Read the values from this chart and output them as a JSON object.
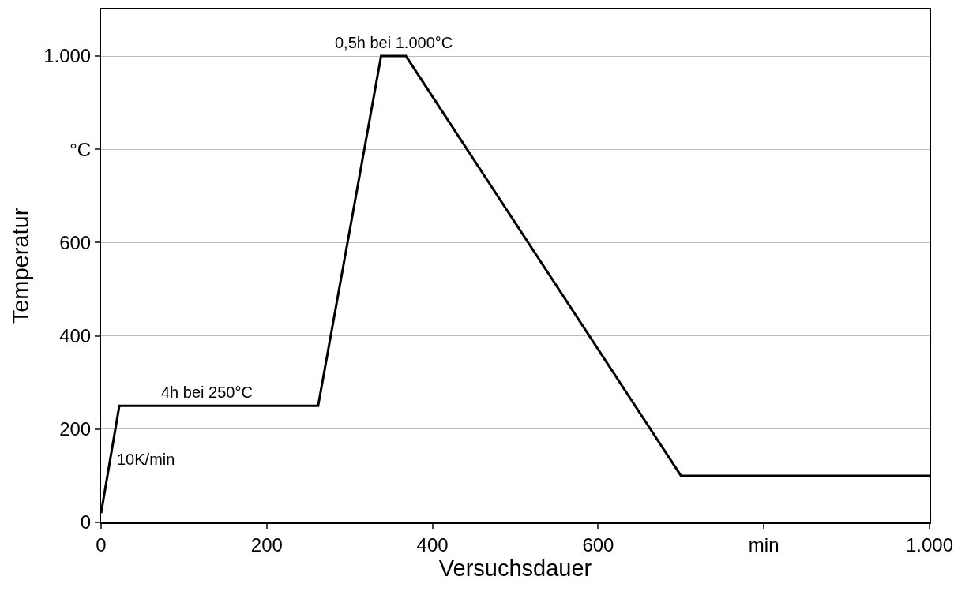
{
  "chart_data": {
    "type": "line",
    "xlabel": "Versuchsdauer",
    "ylabel": "Temperatur",
    "x": [
      0,
      22,
      262,
      338,
      368,
      700,
      1000
    ],
    "series": [
      {
        "color": "#000000",
        "values": [
          20,
          250,
          250,
          1000,
          1000,
          100,
          100
        ]
      }
    ],
    "xlim": [
      0,
      1000
    ],
    "xticks": [
      0,
      200,
      400,
      600,
      {
        "value": 800,
        "label": "min"
      },
      {
        "value": 1000,
        "label": "1.000"
      }
    ],
    "ylim": [
      0,
      1100
    ],
    "yticks": [
      0,
      200,
      400,
      600,
      {
        "value": 800,
        "label": "°C"
      },
      {
        "value": 1000,
        "label": "1.000"
      }
    ],
    "grid": "y",
    "marker": "none",
    "line_style": "solid",
    "annotations": [
      {
        "text": "0,5h bei 1.000°C",
        "x": 353,
        "y": 1000
      },
      {
        "text": "4h bei 250°C",
        "x": 128,
        "y": 250
      },
      {
        "text": "10K/min",
        "x": 11,
        "y": 135
      }
    ]
  }
}
